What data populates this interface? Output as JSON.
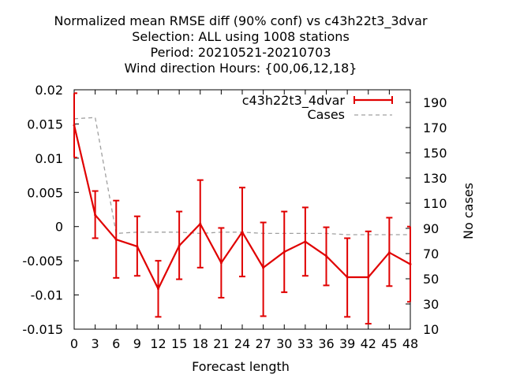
{
  "chart_data": {
    "type": "line",
    "title_lines": [
      "Normalized mean RMSE diff (90% conf) vs c43h22t3_3dvar",
      "Selection: ALL using  1008 stations",
      "Period: 20210521-20210703",
      "Wind direction   Hours: {00,06,12,18}"
    ],
    "xlabel": "Forecast length",
    "ylabel": "",
    "y2label": "No cases",
    "x": [
      0,
      3,
      6,
      9,
      12,
      15,
      18,
      21,
      24,
      27,
      30,
      33,
      36,
      39,
      42,
      45,
      48
    ],
    "xticks": [
      "0",
      "3",
      "6",
      "9",
      "12",
      "15",
      "18",
      "21",
      "24",
      "27",
      "30",
      "33",
      "36",
      "39",
      "42",
      "45",
      "48"
    ],
    "xlim": [
      0,
      48
    ],
    "ylim": [
      -0.015,
      0.02
    ],
    "yticks": [
      -0.015,
      -0.01,
      -0.005,
      0,
      0.005,
      0.01,
      0.015,
      0.02
    ],
    "ytick_labels": [
      "-0.015",
      "-0.01",
      "-0.005",
      "0",
      "0.005",
      "0.01",
      "0.015",
      "0.02"
    ],
    "y2lim": [
      10,
      200
    ],
    "y2ticks": [
      10,
      30,
      50,
      70,
      90,
      110,
      130,
      150,
      170,
      190
    ],
    "y2tick_labels": [
      "10",
      "30",
      "50",
      "70",
      "90",
      "110",
      "130",
      "150",
      "170",
      "190"
    ],
    "legend_position": "top-right",
    "series": [
      {
        "name": "c43h22t3_4dvar",
        "color": "#e00000",
        "axis": "left",
        "style": "line-errorbars",
        "values": [
          0.0148,
          0.0017,
          -0.0019,
          -0.0029,
          -0.0091,
          -0.0028,
          0.0004,
          -0.0053,
          -0.0008,
          -0.006,
          -0.0037,
          -0.0022,
          -0.0043,
          -0.0074,
          -0.0074,
          -0.0038,
          -0.0055
        ],
        "err_low": [
          0.0101,
          -0.0017,
          -0.0075,
          -0.0072,
          -0.0132,
          -0.0077,
          -0.006,
          -0.0104,
          -0.0073,
          -0.0131,
          -0.0096,
          -0.0072,
          -0.0086,
          -0.0132,
          -0.0142,
          -0.0087,
          -0.011
        ],
        "err_high": [
          0.0195,
          0.0052,
          0.0038,
          0.0015,
          -0.005,
          0.0022,
          0.0068,
          -0.0002,
          0.0057,
          0.0006,
          0.0022,
          0.0028,
          -0.0001,
          -0.0017,
          -0.0007,
          0.0013,
          0.0
        ],
        "legend_label": "c43h22t3_4dvar"
      },
      {
        "name": "Cases",
        "color": "#a0a0a0",
        "axis": "right",
        "style": "dashed",
        "values": [
          177,
          178,
          86,
          87,
          87,
          87,
          86,
          87,
          87,
          86,
          86,
          86,
          86,
          85,
          85,
          85,
          85
        ],
        "legend_label": "Cases"
      }
    ]
  }
}
